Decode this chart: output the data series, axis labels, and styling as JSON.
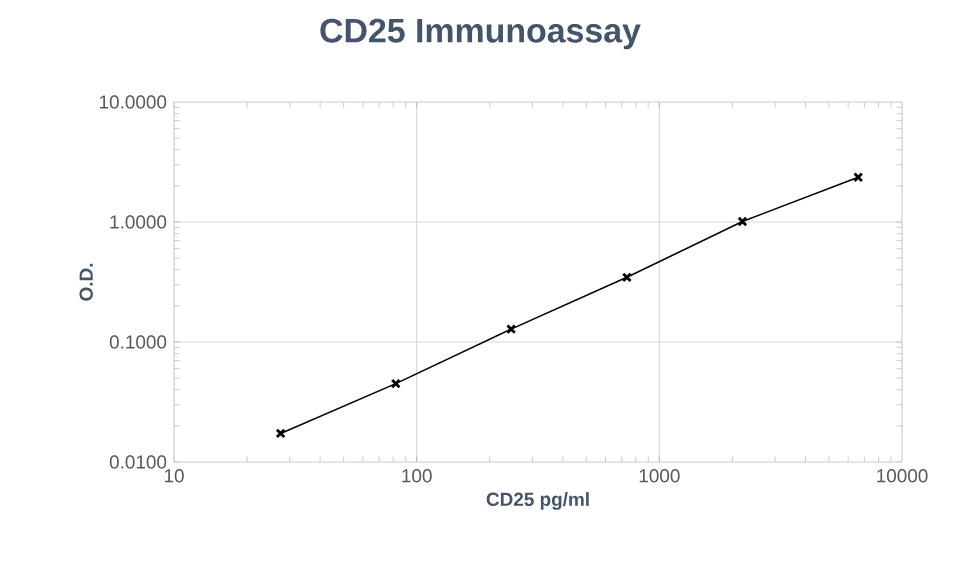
{
  "chart_data": {
    "type": "line",
    "title": "CD25 Immunoassay",
    "xlabel": "CD25 pg/ml",
    "ylabel": "O.D.",
    "x": [
      27.5,
      82,
      245,
      735,
      2200,
      6600
    ],
    "series": [
      {
        "color": "#000000",
        "values": [
          0.0173,
          0.045,
          0.128,
          0.346,
          1.01,
          2.36
        ]
      }
    ],
    "log": "xy",
    "xlim": [
      10,
      10000
    ],
    "ylim": [
      0.01,
      10
    ],
    "xticks": [
      10,
      100,
      1000,
      10000
    ],
    "yticks": [
      {
        "value": 0.01,
        "label": "0.0100"
      },
      {
        "value": 0.1,
        "label": "0.1000"
      },
      {
        "value": 1,
        "label": "1.0000"
      },
      {
        "value": 10,
        "label": "10.0000"
      }
    ],
    "grid": true,
    "marker": "cross",
    "line_style": "solid"
  }
}
